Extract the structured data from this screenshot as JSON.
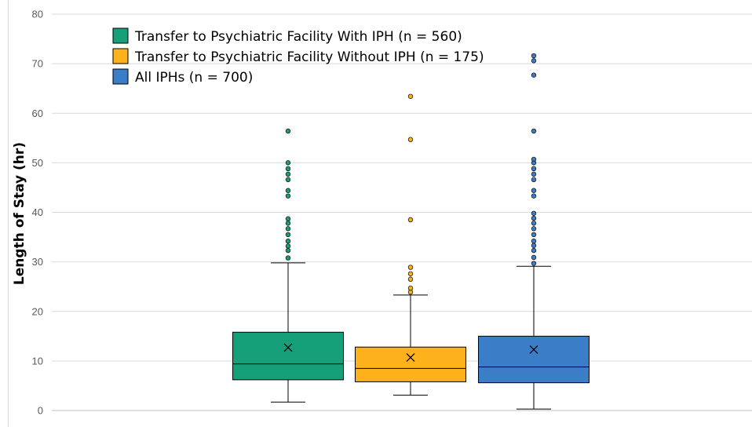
{
  "chart_data": {
    "type": "boxplot",
    "ylabel": "Length of Stay (hr)",
    "ylim": [
      0,
      80
    ],
    "yticks": [
      0,
      10,
      20,
      30,
      40,
      50,
      60,
      70,
      80
    ],
    "grid": true,
    "legend_position": "top-left",
    "series": [
      {
        "name": "Transfer to Psychiatric Facility With IPH (n = 560)",
        "color": "#16A07A",
        "whisker_low": 1.7,
        "q1": 6.2,
        "median": 9.4,
        "q3": 15.8,
        "whisker_high": 29.8,
        "mean": 12.7,
        "outliers": [
          30.8,
          32.3,
          33.2,
          34.2,
          35.5,
          36.7,
          37.8,
          38.7,
          43.3,
          44.4,
          46.6,
          47.7,
          48.8,
          50.0,
          56.4
        ]
      },
      {
        "name": "Transfer to Psychiatric Facility Without IPH (n = 175)",
        "color": "#FDB21C",
        "whisker_low": 3.1,
        "q1": 5.8,
        "median": 8.5,
        "q3": 12.8,
        "whisker_high": 23.3,
        "mean": 10.7,
        "outliers": [
          23.9,
          24.7,
          26.5,
          27.6,
          28.9,
          38.5,
          54.7,
          63.4
        ]
      },
      {
        "name": "All IPHs (n = 700)",
        "color": "#3B7DC7",
        "whisker_low": 0.3,
        "q1": 5.6,
        "median": 8.8,
        "q3": 15.0,
        "whisker_high": 29.1,
        "mean": 12.3,
        "outliers": [
          29.7,
          30.9,
          32.3,
          33.3,
          34.2,
          35.5,
          36.7,
          37.8,
          38.8,
          39.8,
          43.3,
          44.4,
          46.6,
          47.7,
          48.8,
          50.0,
          50.7,
          56.4,
          67.7,
          70.6,
          71.6
        ]
      }
    ]
  }
}
